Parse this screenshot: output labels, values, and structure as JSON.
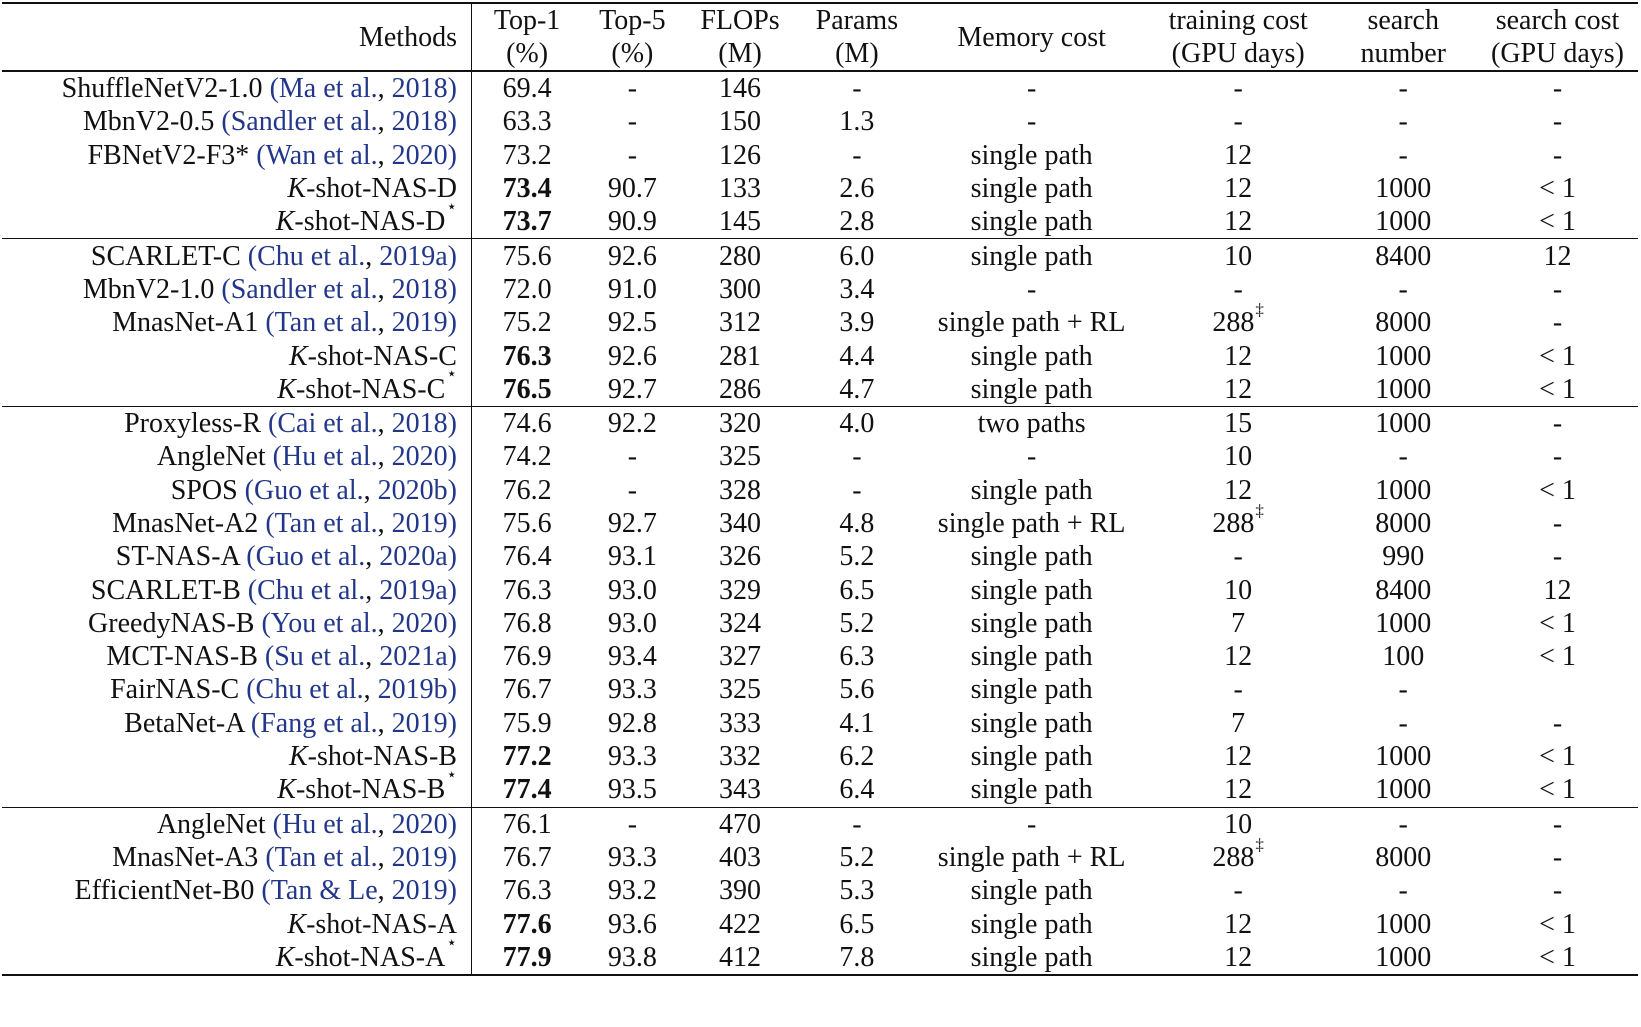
{
  "table": {
    "headers": [
      {
        "line1": "Methods",
        "line2": ""
      },
      {
        "line1": "Top-1",
        "line2": "(%)"
      },
      {
        "line1": "Top-5",
        "line2": "(%)"
      },
      {
        "line1": "FLOPs",
        "line2": "(M)"
      },
      {
        "line1": "Params",
        "line2": "(M)"
      },
      {
        "line1": "Memory cost",
        "line2": ""
      },
      {
        "line1": "training cost",
        "line2": "(GPU days)"
      },
      {
        "line1": "search",
        "line2": "number"
      },
      {
        "line1": "search cost",
        "line2": "(GPU days)"
      }
    ],
    "groups": [
      [
        {
          "name": "ShuffleNetV2-1.0",
          "cite_authors": "Ma et al.",
          "cite_year": "2018",
          "top1": "69.4",
          "top5": "-",
          "flops": "146",
          "params": "-",
          "memory": "-",
          "train": "-",
          "search_num": "-",
          "search_cost": "-"
        },
        {
          "name": "MbnV2-0.5",
          "cite_authors": "Sandler et al.",
          "cite_year": "2018",
          "top1": "63.3",
          "top5": "-",
          "flops": "150",
          "params": "1.3",
          "memory": "-",
          "train": "-",
          "search_num": "-",
          "search_cost": "-"
        },
        {
          "name": "FBNetV2-F3*",
          "cite_authors": "Wan et al.",
          "cite_year": "2020",
          "top1": "73.2",
          "top5": "-",
          "flops": "126",
          "params": "-",
          "memory": "single path",
          "train": "12",
          "search_num": "-",
          "search_cost": "-"
        },
        {
          "kshot": true,
          "k": "K",
          "name": "-shot-NAS-D",
          "top1": "73.4",
          "top1_bold": true,
          "top5": "90.7",
          "flops": "133",
          "params": "2.6",
          "memory": "single path",
          "train": "12",
          "search_num": "1000",
          "search_cost": "< 1"
        },
        {
          "kshot": true,
          "k": "K",
          "name": "-shot-NAS-D",
          "star": "⋆",
          "top1": "73.7",
          "top1_bold": true,
          "top5": "90.9",
          "flops": "145",
          "params": "2.8",
          "memory": "single path",
          "train": "12",
          "search_num": "1000",
          "search_cost": "< 1"
        }
      ],
      [
        {
          "name": "SCARLET-C",
          "cite_authors": "Chu et al.",
          "cite_year": "2019a",
          "top1": "75.6",
          "top5": "92.6",
          "flops": "280",
          "params": "6.0",
          "memory": "single path",
          "train": "10",
          "search_num": "8400",
          "search_cost": "12"
        },
        {
          "name": "MbnV2-1.0",
          "cite_authors": "Sandler et al.",
          "cite_year": "2018",
          "top1": "72.0",
          "top5": "91.0",
          "flops": "300",
          "params": "3.4",
          "memory": "-",
          "train": "-",
          "search_num": "-",
          "search_cost": "-"
        },
        {
          "name": "MnasNet-A1",
          "cite_authors": "Tan et al.",
          "cite_year": "2019",
          "top1": "75.2",
          "top5": "92.5",
          "flops": "312",
          "params": "3.9",
          "memory": "single path + RL",
          "train": "288",
          "train_mark": "‡",
          "search_num": "8000",
          "search_cost": "-"
        },
        {
          "kshot": true,
          "k": "K",
          "name": "-shot-NAS-C",
          "top1": "76.3",
          "top1_bold": true,
          "top5": "92.6",
          "flops": "281",
          "params": "4.4",
          "memory": "single path",
          "train": "12",
          "search_num": "1000",
          "search_cost": "< 1"
        },
        {
          "kshot": true,
          "k": "K",
          "name": "-shot-NAS-C",
          "star": "⋆",
          "top1": "76.5",
          "top1_bold": true,
          "top5": "92.7",
          "flops": "286",
          "params": "4.7",
          "memory": "single path",
          "train": "12",
          "search_num": "1000",
          "search_cost": "< 1"
        }
      ],
      [
        {
          "name": "Proxyless-R",
          "cite_authors": "Cai et al.",
          "cite_year": "2018",
          "top1": "74.6",
          "top5": "92.2",
          "flops": "320",
          "params": "4.0",
          "memory": "two paths",
          "train": "15",
          "search_num": "1000",
          "search_cost": "-"
        },
        {
          "name": "AngleNet",
          "cite_authors": "Hu et al.",
          "cite_year": "2020",
          "top1": "74.2",
          "top5": "-",
          "flops": "325",
          "params": "-",
          "memory": "-",
          "train": "10",
          "search_num": "-",
          "search_cost": "-"
        },
        {
          "name": "SPOS",
          "cite_authors": "Guo et al.",
          "cite_year": "2020b",
          "top1": "76.2",
          "top5": "-",
          "flops": "328",
          "params": "-",
          "memory": "single path",
          "train": "12",
          "search_num": "1000",
          "search_cost": "< 1"
        },
        {
          "name": "MnasNet-A2",
          "cite_authors": "Tan et al.",
          "cite_year": "2019",
          "top1": "75.6",
          "top5": "92.7",
          "flops": "340",
          "params": "4.8",
          "memory": "single path + RL",
          "train": "288",
          "train_mark": "‡",
          "search_num": "8000",
          "search_cost": "-"
        },
        {
          "name": "ST-NAS-A",
          "cite_authors": "Guo et al.",
          "cite_year": "2020a",
          "top1": "76.4",
          "top5": "93.1",
          "flops": "326",
          "params": "5.2",
          "memory": "single path",
          "train": "-",
          "search_num": "990",
          "search_cost": "-"
        },
        {
          "name": "SCARLET-B",
          "cite_authors": "Chu et al.",
          "cite_year": "2019a",
          "top1": "76.3",
          "top5": "93.0",
          "flops": "329",
          "params": "6.5",
          "memory": "single path",
          "train": "10",
          "search_num": "8400",
          "search_cost": "12"
        },
        {
          "name": "GreedyNAS-B",
          "cite_authors": "You et al.",
          "cite_year": "2020",
          "top1": "76.8",
          "top5": "93.0",
          "flops": "324",
          "params": "5.2",
          "memory": "single path",
          "train": "7",
          "search_num": "1000",
          "search_cost": "< 1"
        },
        {
          "name": "MCT-NAS-B",
          "cite_authors": "Su et al.",
          "cite_year": "2021a",
          "top1": "76.9",
          "top5": "93.4",
          "flops": "327",
          "params": "6.3",
          "memory": "single path",
          "train": "12",
          "search_num": "100",
          "search_cost": "< 1"
        },
        {
          "name": "FairNAS-C",
          "cite_authors": "Chu et al.",
          "cite_year": "2019b",
          "top1": "76.7",
          "top5": "93.3",
          "flops": "325",
          "params": "5.6",
          "memory": "single path",
          "train": "-",
          "search_num": "-",
          "search_cost": ""
        },
        {
          "name": "BetaNet-A",
          "cite_authors": "Fang et al.",
          "cite_year": "2019",
          "top1": "75.9",
          "top5": "92.8",
          "flops": "333",
          "params": "4.1",
          "memory": "single path",
          "train": "7",
          "search_num": "-",
          "search_cost": "-"
        },
        {
          "kshot": true,
          "k": "K",
          "name": "-shot-NAS-B",
          "top1": "77.2",
          "top1_bold": true,
          "top5": "93.3",
          "flops": "332",
          "params": "6.2",
          "memory": "single path",
          "train": "12",
          "search_num": "1000",
          "search_cost": "< 1"
        },
        {
          "kshot": true,
          "k": "K",
          "name": "-shot-NAS-B",
          "star": "⋆",
          "top1": "77.4",
          "top1_bold": true,
          "top5": "93.5",
          "flops": "343",
          "params": "6.4",
          "memory": "single path",
          "train": "12",
          "search_num": "1000",
          "search_cost": "< 1"
        }
      ],
      [
        {
          "name": "AngleNet",
          "cite_authors": "Hu et al.",
          "cite_year": "2020",
          "top1": "76.1",
          "top5": "-",
          "flops": "470",
          "params": "-",
          "memory": "-",
          "train": "10",
          "search_num": "-",
          "search_cost": "-"
        },
        {
          "name": "MnasNet-A3",
          "cite_authors": "Tan et al.",
          "cite_year": "2019",
          "top1": "76.7",
          "top5": "93.3",
          "flops": "403",
          "params": "5.2",
          "memory": "single path + RL",
          "train": "288",
          "train_mark": "‡",
          "search_num": "8000",
          "search_cost": "-"
        },
        {
          "name": "EfficientNet-B0",
          "cite_authors": "Tan & Le",
          "cite_year": "2019",
          "top1": "76.3",
          "top5": "93.2",
          "flops": "390",
          "params": "5.3",
          "memory": "single path",
          "train": "-",
          "search_num": "-",
          "search_cost": "-"
        },
        {
          "kshot": true,
          "k": "K",
          "name": "-shot-NAS-A",
          "top1": "77.6",
          "top1_bold": true,
          "top5": "93.6",
          "flops": "422",
          "params": "6.5",
          "memory": "single path",
          "train": "12",
          "search_num": "1000",
          "search_cost": "< 1"
        },
        {
          "kshot": true,
          "k": "K",
          "name": "-shot-NAS-A",
          "star": "⋆",
          "top1": "77.9",
          "top1_bold": true,
          "top5": "93.8",
          "flops": "412",
          "params": "7.8",
          "memory": "single path",
          "train": "12",
          "search_num": "1000",
          "search_cost": "< 1"
        }
      ]
    ]
  }
}
